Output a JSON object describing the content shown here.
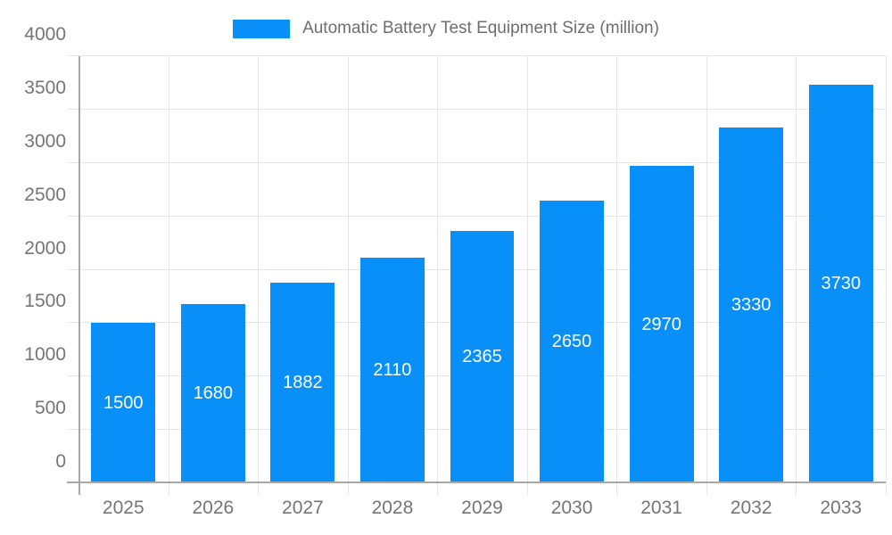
{
  "legend": {
    "label": "Automatic Battery Test Equipment Size (million)"
  },
  "chart_data": {
    "type": "bar",
    "title": "Automatic Battery Test Equipment Size (million)",
    "categories": [
      "2025",
      "2026",
      "2027",
      "2028",
      "2029",
      "2030",
      "2031",
      "2032",
      "2033"
    ],
    "values": [
      1500,
      1680,
      1882,
      2110,
      2365,
      2650,
      2970,
      3330,
      3730
    ],
    "value_labels": [
      "1500",
      "1680",
      "1882",
      "2110",
      "2365",
      "2650",
      "2970",
      "3330",
      "3730"
    ],
    "xlabel": "",
    "ylabel": "",
    "ylim": [
      0,
      4000
    ],
    "ytick_step": 500,
    "ytick_labels": [
      "0",
      "500",
      "1000",
      "1500",
      "2000",
      "2500",
      "3000",
      "3500",
      "4000"
    ],
    "grid": true,
    "legend_position": "top",
    "value_label_position": "inside-center"
  },
  "colors": {
    "bar": "#0890f8",
    "bar_label": "#ffffff",
    "grid": "#e6e6e6",
    "axis": "#a8a8a8",
    "text_axis": "#757575",
    "text_title": "#6e6e6e",
    "background": "#ffffff"
  }
}
